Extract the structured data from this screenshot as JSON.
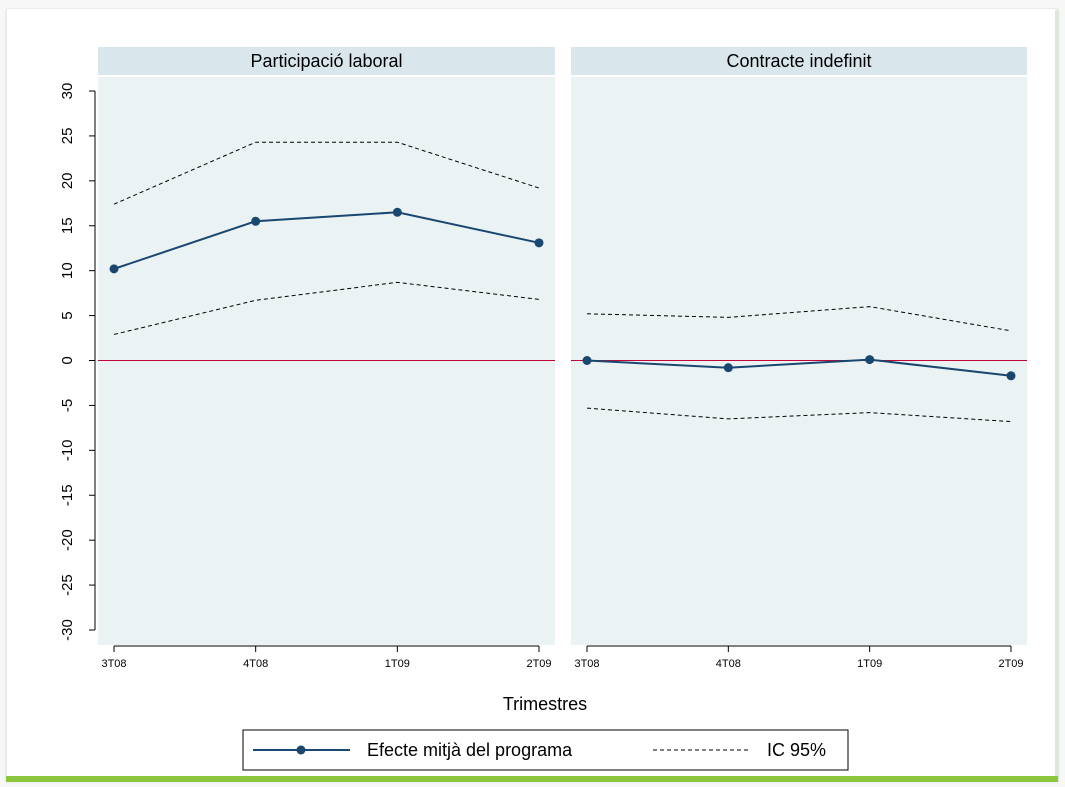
{
  "colors": {
    "estimate": "#1a476f",
    "zero_line": "#c10534",
    "panel_bg": "#eaf2f3",
    "strip_bg": "#d9e6eb",
    "ci": "#000000",
    "frame_accent": "#8cc63f"
  },
  "chart_data": {
    "type": "line",
    "xlabel": "Trimestres",
    "ylabel": "",
    "ylim": [
      -30,
      30
    ],
    "yticks": [
      30,
      25,
      20,
      15,
      10,
      5,
      0,
      -5,
      -10,
      -15,
      -20,
      -25,
      -30
    ],
    "grid": false,
    "legend_position": "bottom",
    "categories": [
      "3T08",
      "4T08",
      "1T09",
      "2T09"
    ],
    "reference_line": 0,
    "legend": [
      {
        "label": "Efecte mitjà del programa",
        "style": "solid-with-markers"
      },
      {
        "label": "IC 95%",
        "style": "dashed"
      }
    ],
    "panels": [
      {
        "title": "Participació laboral",
        "series": [
          {
            "name": "Efecte mitjà del programa",
            "values": [
              10.2,
              15.5,
              16.5,
              13.1
            ]
          },
          {
            "name": "IC 95% superior",
            "values": [
              17.4,
              24.3,
              24.3,
              19.2
            ]
          },
          {
            "name": "IC 95% inferior",
            "values": [
              2.9,
              6.7,
              8.7,
              6.8
            ]
          }
        ]
      },
      {
        "title": "Contracte indefinit",
        "series": [
          {
            "name": "Efecte mitjà del programa",
            "values": [
              0.0,
              -0.8,
              0.1,
              -1.7
            ]
          },
          {
            "name": "IC 95% superior",
            "values": [
              5.2,
              4.8,
              6.0,
              3.3
            ]
          },
          {
            "name": "IC 95% inferior",
            "values": [
              -5.3,
              -6.5,
              -5.8,
              -6.8
            ]
          }
        ]
      }
    ]
  }
}
